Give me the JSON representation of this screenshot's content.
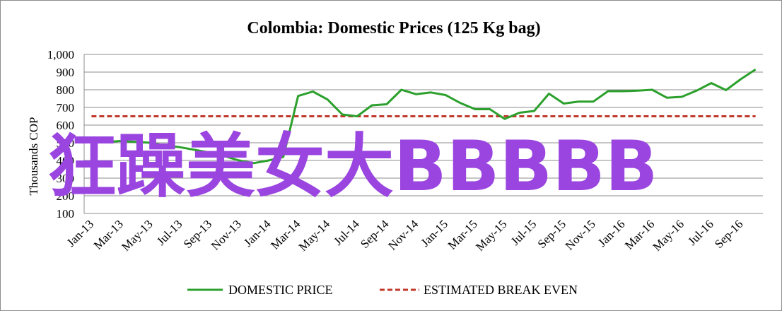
{
  "overlay_text": "狂躁美女大BBBBB",
  "colors": {
    "domestic": "#2ca02c",
    "break_even": "#c0392b",
    "watermark": "#9a45e0",
    "grid": "#8c8c8c"
  },
  "chart_data": {
    "type": "line",
    "title": "Colombia:  Domestic Prices (125 Kg bag)",
    "ylabel": "Thousands COP",
    "xlabel": "",
    "ylim": [
      100,
      1000
    ],
    "yticks": [
      100,
      200,
      300,
      400,
      500,
      600,
      700,
      800,
      900,
      1000
    ],
    "ytick_labels": [
      "100",
      "200",
      "300",
      "400",
      "500",
      "600",
      "700",
      "800",
      "900",
      "1,000"
    ],
    "grid": true,
    "legend": "bottom",
    "x": [
      "Jan-13",
      "Feb-13",
      "Mar-13",
      "Apr-13",
      "May-13",
      "Jun-13",
      "Jul-13",
      "Aug-13",
      "Sep-13",
      "Oct-13",
      "Nov-13",
      "Dec-13",
      "Jan-14",
      "Feb-14",
      "Mar-14",
      "Apr-14",
      "May-14",
      "Jun-14",
      "Jul-14",
      "Aug-14",
      "Sep-14",
      "Oct-14",
      "Nov-14",
      "Dec-14",
      "Jan-15",
      "Feb-15",
      "Mar-15",
      "Apr-15",
      "May-15",
      "Jun-15",
      "Jul-15",
      "Aug-15",
      "Sep-15",
      "Oct-15",
      "Nov-15",
      "Dec-15",
      "Jan-16",
      "Feb-16",
      "Mar-16",
      "Apr-16",
      "May-16",
      "Jun-16",
      "Jul-16",
      "Aug-16",
      "Sep-16",
      "Oct-16"
    ],
    "x_tick_labels": [
      "Jan-13",
      "Mar-13",
      "May-13",
      "Jul-13",
      "Sep-13",
      "Nov-13",
      "Jan-14",
      "Mar-14",
      "May-14",
      "Jul-14",
      "Sep-14",
      "Nov-14",
      "Jan-15",
      "Mar-15",
      "May-15",
      "Jul-15",
      "Sep-15",
      "Nov-15",
      "Jan-16",
      "Mar-16",
      "May-16",
      "Jul-16",
      "Sep-16"
    ],
    "series": [
      {
        "name": "DOMESTIC PRICE",
        "style": "solid",
        "values": [
          515,
          505,
          510,
          505,
          500,
          485,
          475,
          460,
          445,
          425,
          400,
          385,
          400,
          420,
          765,
          790,
          745,
          660,
          650,
          712,
          718,
          800,
          775,
          785,
          770,
          725,
          690,
          690,
          635,
          670,
          680,
          778,
          722,
          733,
          733,
          792,
          792,
          795,
          800,
          755,
          760,
          795,
          838,
          798,
          860,
          915
        ]
      },
      {
        "name": "ESTIMATED BREAK EVEN",
        "style": "dashed",
        "values": [
          650,
          650,
          650,
          650,
          650,
          650,
          650,
          650,
          650,
          650,
          650,
          650,
          650,
          650,
          650,
          650,
          650,
          650,
          650,
          650,
          650,
          650,
          650,
          650,
          650,
          650,
          650,
          650,
          650,
          650,
          650,
          650,
          650,
          650,
          650,
          650,
          650,
          650,
          650,
          650,
          650,
          650,
          650,
          650,
          650,
          650
        ]
      }
    ]
  }
}
